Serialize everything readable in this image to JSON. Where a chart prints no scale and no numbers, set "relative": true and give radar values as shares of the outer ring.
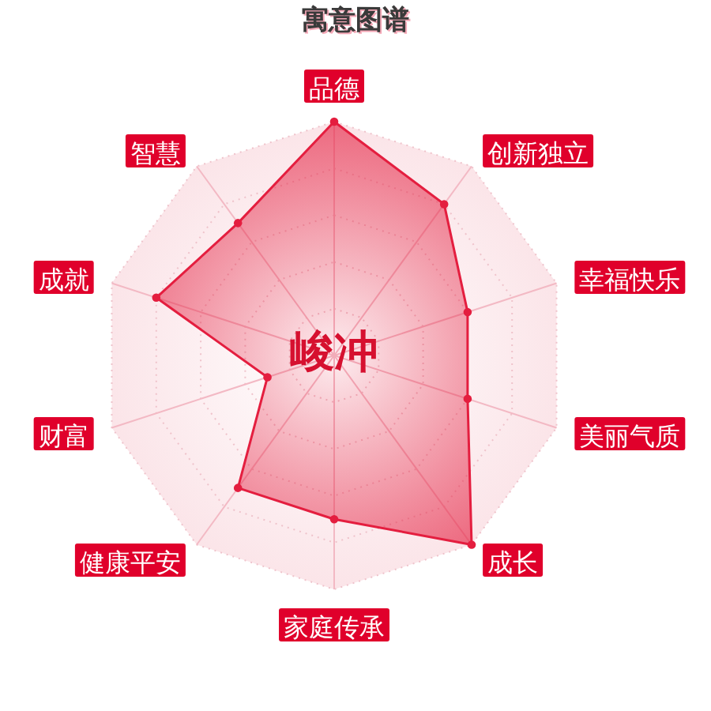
{
  "chart_data": {
    "type": "radar",
    "title": "寓意图谱",
    "categories": [
      "品德",
      "创新独立",
      "幸福快乐",
      "美丽气质",
      "成长",
      "家庭传承",
      "健康平安",
      "财富",
      "成就",
      "智慧"
    ],
    "relative": true,
    "series": [
      {
        "color": "#e41e3f",
        "values": [
          1,
          0.8,
          0.6,
          0.6,
          1,
          0.7,
          0.7,
          0.3,
          0.8,
          0.7
        ]
      }
    ],
    "grid": true,
    "marker": "circle",
    "annotations": [
      "峻冲"
    ]
  }
}
